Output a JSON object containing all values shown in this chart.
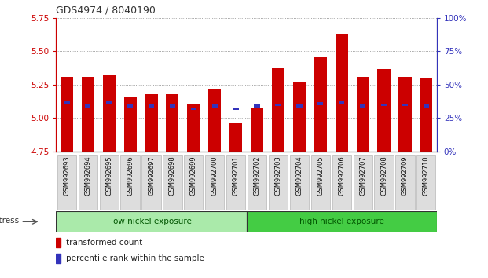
{
  "title": "GDS4974 / 8040190",
  "samples": [
    "GSM992693",
    "GSM992694",
    "GSM992695",
    "GSM992696",
    "GSM992697",
    "GSM992698",
    "GSM992699",
    "GSM992700",
    "GSM992701",
    "GSM992702",
    "GSM992703",
    "GSM992704",
    "GSM992705",
    "GSM992706",
    "GSM992707",
    "GSM992708",
    "GSM992709",
    "GSM992710"
  ],
  "red_bar_tops": [
    5.31,
    5.31,
    5.32,
    5.16,
    5.18,
    5.18,
    5.1,
    5.22,
    4.97,
    5.08,
    5.38,
    5.27,
    5.46,
    5.63,
    5.31,
    5.37,
    5.31,
    5.3
  ],
  "blue_marker_vals": [
    5.12,
    5.09,
    5.12,
    5.09,
    5.09,
    5.09,
    5.07,
    5.09,
    5.07,
    5.09,
    5.1,
    5.09,
    5.11,
    5.12,
    5.09,
    5.1,
    5.1,
    5.09
  ],
  "y_min": 4.75,
  "y_max": 5.75,
  "y_ticks": [
    4.75,
    5.0,
    5.25,
    5.5,
    5.75
  ],
  "right_y_ticks": [
    0,
    25,
    50,
    75,
    100
  ],
  "bar_color": "#cc0000",
  "blue_color": "#3333bb",
  "bar_bottom": 4.75,
  "groups": [
    {
      "label": "low nickel exposure",
      "start": 0,
      "end": 9,
      "color": "#aaeaaa"
    },
    {
      "label": "high nickel exposure",
      "start": 9,
      "end": 18,
      "color": "#44cc44"
    }
  ],
  "group_label_color": "#005500",
  "stress_label": "stress",
  "tick_label_bg": "#dddddd",
  "legend_items": [
    {
      "label": "transformed count",
      "color": "#cc0000"
    },
    {
      "label": "percentile rank within the sample",
      "color": "#3333bb"
    }
  ],
  "grid_color": "#888888",
  "title_color": "#333333",
  "left_axis_color": "#cc0000",
  "right_axis_color": "#3333bb",
  "fig_bg": "#ffffff"
}
